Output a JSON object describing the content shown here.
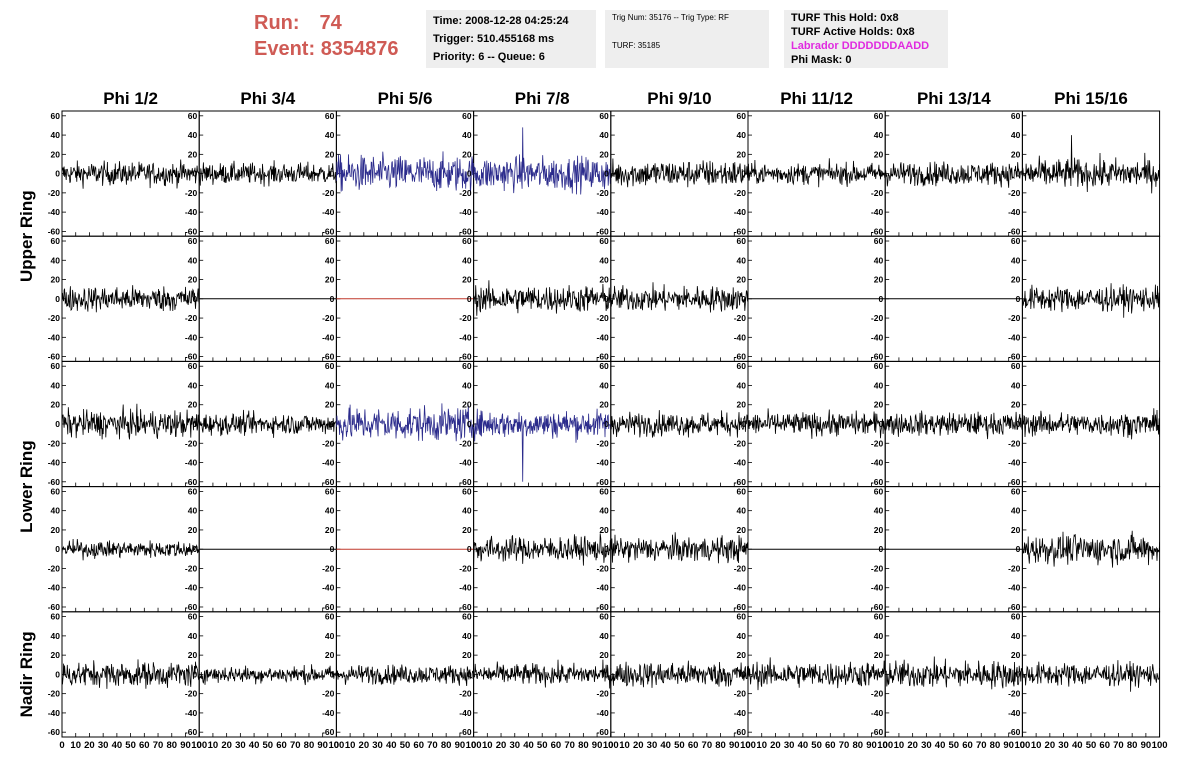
{
  "header": {
    "run_label": "Run:",
    "run_value": "74",
    "event_label": "Event:",
    "event_value": "8354876",
    "time": "Time: 2008-12-28 04:25:24",
    "trigger": "Trigger: 510.455168 ms",
    "priority": "Priority: 6 -- Queue: 6",
    "trig_num": "Trig Num: 35176 -- Trig Type: RF",
    "turf": "TURF: 35185",
    "turf_hold": "TURF This Hold: 0x8",
    "turf_active": "TURF Active Holds: 0x8",
    "labrador": "Labrador DDDDDDDAADD",
    "phi_mask": "Phi Mask: 0"
  },
  "colors": {
    "header_red": "#cf5b55",
    "trace_black": "#000000",
    "trace_blue": "#2b2b8c",
    "flat_red": "#c0392b",
    "labrador_magenta": "#e02be0"
  },
  "chart_data": {
    "type": "line",
    "columns": [
      "Phi 1/2",
      "Phi 3/4",
      "Phi 5/6",
      "Phi 7/8",
      "Phi 9/10",
      "Phi 11/12",
      "Phi 13/14",
      "Phi 15/16"
    ],
    "rows": [
      "Upper Ring",
      "Upper Ring",
      "Lower Ring",
      "Lower Ring",
      "Nadir Ring"
    ],
    "row_labels": [
      "Upper Ring",
      "Lower Ring",
      "Nadir Ring"
    ],
    "xlim": [
      0,
      100
    ],
    "ylim": [
      -65,
      65
    ],
    "x_ticks": [
      0,
      10,
      20,
      30,
      40,
      50,
      60,
      70,
      80,
      90,
      100
    ],
    "y_ticks": [
      -60,
      -40,
      -20,
      0,
      20,
      40,
      60
    ],
    "x_tick_labels": [
      "0",
      "10",
      "20",
      "30",
      "40",
      "50",
      "60",
      "70",
      "80",
      "90",
      "100"
    ],
    "y_tick_labels": [
      "-60",
      "-40",
      "-20",
      "0",
      "20",
      "40",
      "60"
    ],
    "panels": [
      [
        {
          "amp": 11,
          "color": "black",
          "spike": 0
        },
        {
          "amp": 10,
          "color": "black",
          "spike": 0
        },
        {
          "amp": 17,
          "color": "blue",
          "spike": 0
        },
        {
          "amp": 16,
          "color": "blue",
          "spike": 48
        },
        {
          "amp": 13,
          "color": "black",
          "spike": 0
        },
        {
          "amp": 10,
          "color": "black",
          "spike": 0
        },
        {
          "amp": 11,
          "color": "black",
          "spike": 0
        },
        {
          "amp": 14,
          "color": "black",
          "spike": 40
        }
      ],
      [
        {
          "amp": 12,
          "color": "black",
          "spike": 0
        },
        {
          "amp": 0,
          "color": "black",
          "spike": 0
        },
        {
          "amp": 0,
          "color": "red",
          "spike": 0
        },
        {
          "amp": 13,
          "color": "black",
          "spike": 0
        },
        {
          "amp": 12,
          "color": "black",
          "spike": 0
        },
        {
          "amp": 0,
          "color": "black",
          "spike": 0
        },
        {
          "amp": 0,
          "color": "black",
          "spike": 0
        },
        {
          "amp": 12,
          "color": "black",
          "spike": 0
        }
      ],
      [
        {
          "amp": 13,
          "color": "black",
          "spike": 0
        },
        {
          "amp": 10,
          "color": "black",
          "spike": 0
        },
        {
          "amp": 16,
          "color": "blue",
          "spike": 0
        },
        {
          "amp": 13,
          "color": "blue",
          "spike": -60
        },
        {
          "amp": 11,
          "color": "black",
          "spike": 0
        },
        {
          "amp": 11,
          "color": "black",
          "spike": 0
        },
        {
          "amp": 11,
          "color": "black",
          "spike": 0
        },
        {
          "amp": 11,
          "color": "black",
          "spike": 0
        }
      ],
      [
        {
          "amp": 8,
          "color": "black",
          "spike": 0
        },
        {
          "amp": 0,
          "color": "black",
          "spike": 0
        },
        {
          "amp": 0,
          "color": "red",
          "spike": 0
        },
        {
          "amp": 12,
          "color": "black",
          "spike": 0
        },
        {
          "amp": 12,
          "color": "black",
          "spike": 0
        },
        {
          "amp": 0,
          "color": "black",
          "spike": 0
        },
        {
          "amp": 0,
          "color": "black",
          "spike": 0
        },
        {
          "amp": 14,
          "color": "black",
          "spike": 0
        }
      ],
      [
        {
          "amp": 12,
          "color": "black",
          "spike": 0
        },
        {
          "amp": 8,
          "color": "black",
          "spike": 0
        },
        {
          "amp": 9,
          "color": "black",
          "spike": 0
        },
        {
          "amp": 10,
          "color": "black",
          "spike": 0
        },
        {
          "amp": 12,
          "color": "black",
          "spike": 0
        },
        {
          "amp": 12,
          "color": "black",
          "spike": 0
        },
        {
          "amp": 13,
          "color": "black",
          "spike": 0
        },
        {
          "amp": 11,
          "color": "black",
          "spike": 0
        }
      ]
    ]
  }
}
